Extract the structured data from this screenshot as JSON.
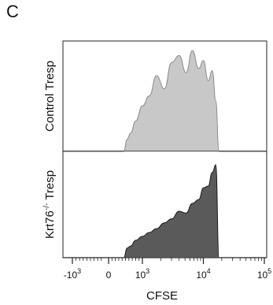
{
  "figure": {
    "panel_label": "C"
  },
  "chart_data": {
    "type": "area",
    "title": "",
    "xlabel": "CFSE",
    "x_scale": "biexponential",
    "xlim": [
      -2000,
      100000
    ],
    "x_ticks": [
      {
        "value": -1000,
        "base": "-10",
        "exp": "3"
      },
      {
        "value": 0,
        "base": "0",
        "exp": ""
      },
      {
        "value": 1000,
        "base": "10",
        "exp": "3"
      },
      {
        "value": 10000,
        "base": "10",
        "exp": "4"
      },
      {
        "value": 100000,
        "base": "10",
        "exp": "5"
      }
    ],
    "panels": [
      {
        "ylabel": "Control Tresp",
        "color": "#c8c8c8",
        "stroke": "#8c8c8c",
        "peak_heights": [
          0.1,
          0.26,
          0.33,
          0.5,
          0.62,
          0.76,
          0.8,
          0.85,
          0.86,
          0.88,
          0.82,
          0.74,
          0.55,
          0.1
        ],
        "x": [
          450,
          550,
          650,
          800,
          1000,
          1300,
          1700,
          2300,
          3000,
          4000,
          5200,
          6600,
          8400,
          10000,
          12000,
          14000,
          16000,
          18000
        ],
        "y": [
          0.0,
          0.12,
          0.18,
          0.3,
          0.45,
          0.55,
          0.75,
          0.62,
          0.88,
          0.95,
          0.78,
          1.0,
          0.82,
          0.9,
          0.7,
          0.8,
          0.5,
          0.0
        ]
      },
      {
        "ylabel": "Krt76-/- Tresp",
        "ylabel_base": "Krt76",
        "ylabel_sup": "-/-",
        "ylabel_rest": " Tresp",
        "color": "#5a5a5a",
        "stroke": "#1a1a1a",
        "x": [
          450,
          550,
          650,
          800,
          1000,
          1300,
          1700,
          2300,
          3000,
          4000,
          5200,
          6600,
          8400,
          10000,
          12000,
          14000,
          16000,
          18000
        ],
        "y": [
          0.0,
          0.1,
          0.12,
          0.18,
          0.22,
          0.26,
          0.3,
          0.36,
          0.4,
          0.48,
          0.46,
          0.56,
          0.6,
          0.72,
          0.74,
          0.88,
          0.96,
          0.0
        ]
      }
    ],
    "grid": false,
    "legend": "none"
  }
}
